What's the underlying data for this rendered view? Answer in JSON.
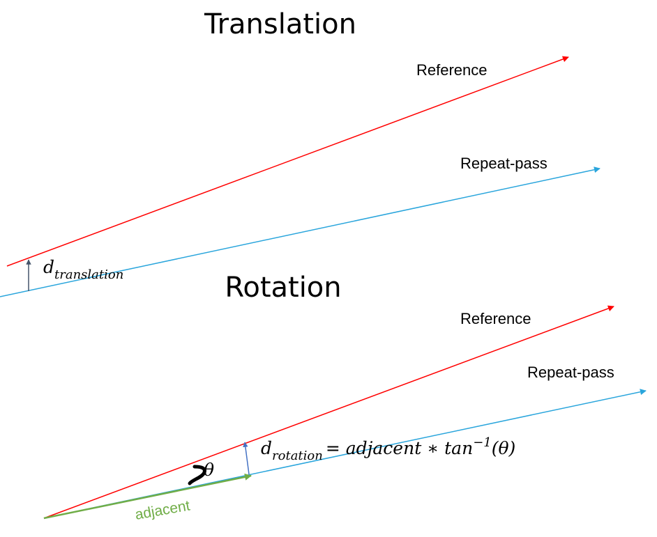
{
  "translation": {
    "title": "Translation",
    "reference_label": "Reference",
    "repeat_label": "Repeat-pass",
    "d_symbol": "d",
    "d_subscript": "translation"
  },
  "rotation": {
    "title": "Rotation",
    "reference_label": "Reference",
    "repeat_label": "Repeat-pass",
    "theta_symbol": "θ",
    "adjacent_label": "adjacent",
    "d_symbol": "d",
    "d_subscript": "rotation",
    "formula_rhs": "= adjacent ∗ tan",
    "formula_exponent": "−1",
    "formula_arg": "(θ)"
  },
  "colors": {
    "reference": "#ff0000",
    "repeat_pass": "#29a5dc",
    "d_translation_arrow": "#44546a",
    "d_rotation_arrow": "#4472c4",
    "adjacent": "#70ad47",
    "curve": "#000000"
  }
}
